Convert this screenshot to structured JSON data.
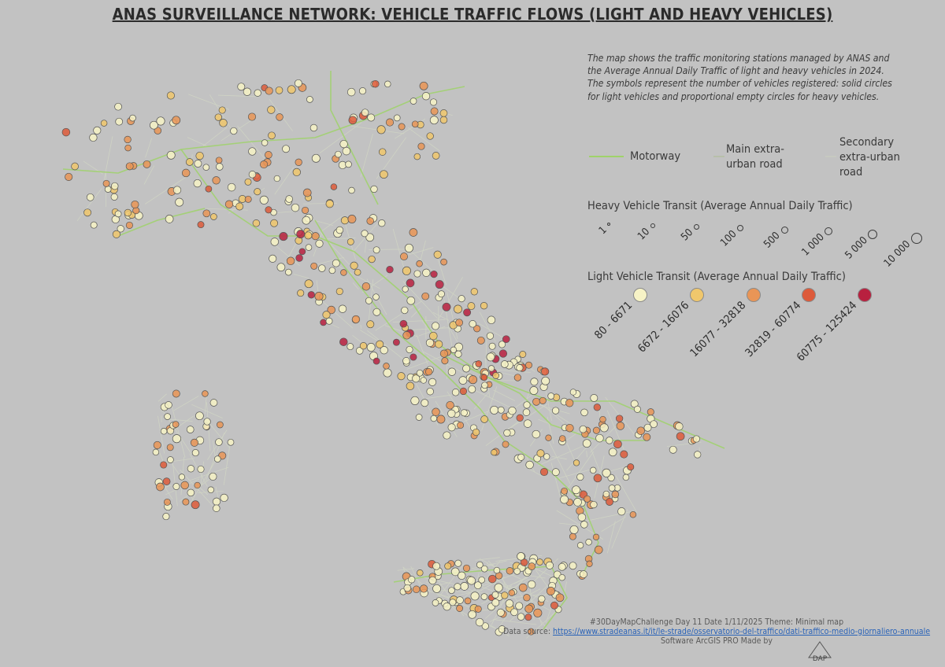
{
  "title": "ANAS SURVEILLANCE NETWORK: VEHICLE TRAFFIC FLOWS (LIGHT AND HEAVY VEHICLES)",
  "description": [
    "The map shows the traffic monitoring stations managed by ANAS and the Average Annual Daily Traffic of light and heavy vehicles in 2024.",
    "The symbols represent the number of vehicles registered: solid circles for light vehicles and proportional empty circles for heavy vehicles."
  ],
  "road_legend": {
    "items": [
      {
        "label": "Motorway",
        "color": "#9fd26a"
      },
      {
        "label": "Main extra-urban road",
        "color": "#b7bfa9"
      },
      {
        "label": "Secondary extra-urban road",
        "color": "#c7c9c0"
      }
    ]
  },
  "heavy_legend": {
    "title": "Heavy Vehicle Transit (Average Annual Daily Traffic)",
    "classes": [
      "1",
      "10",
      "50",
      "100",
      "500",
      "1 000",
      "5 000",
      "10 000"
    ]
  },
  "light_legend": {
    "title": "Light Vehicle Transit (Average Annual Daily Traffic)",
    "classes": [
      {
        "label": "80 - 6671",
        "color": "#f7f3c6"
      },
      {
        "label": "6672 - 16076",
        "color": "#f0c76c"
      },
      {
        "label": "16077 - 32818",
        "color": "#e99556"
      },
      {
        "label": "32819 - 60774",
        "color": "#dd5a3a"
      },
      {
        "label": "60775 - 125424",
        "color": "#b8203f"
      }
    ]
  },
  "footer": {
    "line1": "#30DayMapChallenge Day 11 Date 1/11/2025 Theme: Minimal map",
    "source_label": "Data source:",
    "source_url": "https://www.stradeanas.it/it/le-strade/osservatorio-del-traffico/dati-traffico-medio-giornaliero-annuale",
    "line3": "Software ArcGIS PRO Made by",
    "logo_text": "DAP"
  },
  "colors": {
    "background": "#c2c2c2",
    "motorway": "#9fd26a",
    "station_outline": "#555555"
  }
}
